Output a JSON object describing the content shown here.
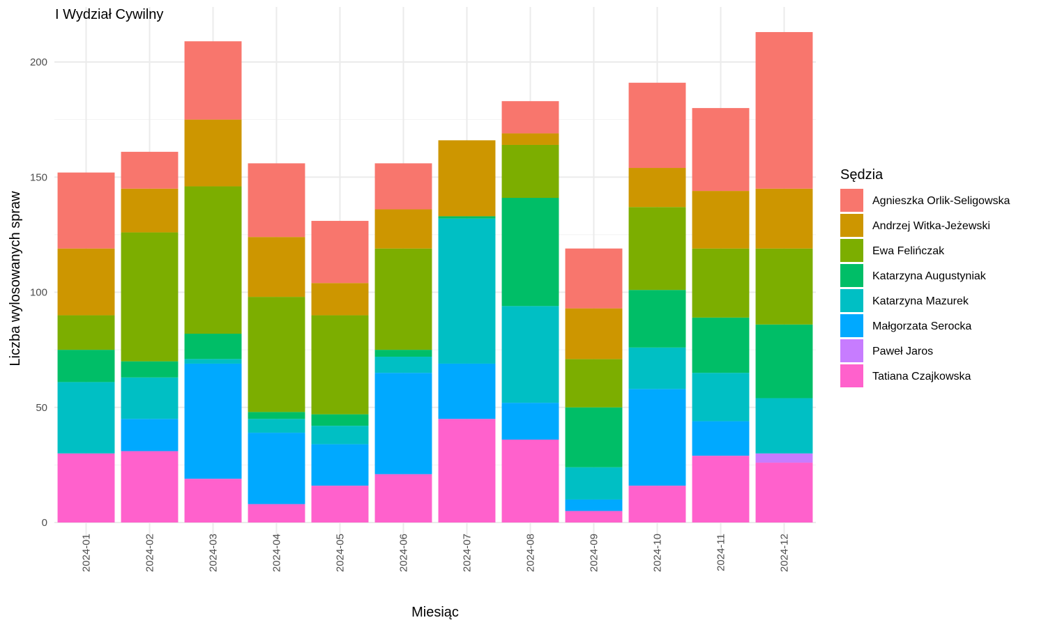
{
  "chart_data": {
    "type": "bar",
    "stacked": true,
    "title": "I Wydział Cywilny",
    "xlabel": "Miesiąc",
    "ylabel": "Liczba wylosowanych spraw",
    "ylim": [
      0,
      220
    ],
    "yticks": [
      0,
      50,
      100,
      150,
      200
    ],
    "grid": true,
    "legend_title": "Sędzia",
    "legend_position": "right",
    "categories": [
      "2024-01",
      "2024-02",
      "2024-03",
      "2024-04",
      "2024-05",
      "2024-06",
      "2024-07",
      "2024-08",
      "2024-09",
      "2024-10",
      "2024-11",
      "2024-12"
    ],
    "series": [
      {
        "name": "Agnieszka Orlik-Seligowska",
        "color": "#F8766D",
        "values": [
          33,
          16,
          34,
          32,
          27,
          20,
          0,
          14,
          26,
          37,
          36,
          68
        ]
      },
      {
        "name": "Andrzej Witka-Jeżewski",
        "color": "#CD9600",
        "values": [
          29,
          19,
          29,
          26,
          14,
          17,
          33,
          5,
          22,
          17,
          25,
          26
        ]
      },
      {
        "name": "Ewa Felińczak",
        "color": "#7CAE00",
        "values": [
          15,
          56,
          64,
          50,
          43,
          44,
          0,
          23,
          21,
          36,
          30,
          33
        ]
      },
      {
        "name": "Katarzyna Augustyniak",
        "color": "#00BE67",
        "values": [
          14,
          7,
          11,
          3,
          5,
          3,
          1,
          47,
          26,
          25,
          24,
          32
        ]
      },
      {
        "name": "Katarzyna Mazurek",
        "color": "#00BFC4",
        "values": [
          31,
          18,
          2,
          6,
          8,
          7,
          63,
          42,
          14,
          18,
          21,
          24
        ]
      },
      {
        "name": "Małgorzata Serocka",
        "color": "#00A9FF",
        "values": [
          0,
          14,
          50,
          31,
          18,
          44,
          24,
          16,
          5,
          42,
          15,
          0
        ]
      },
      {
        "name": "Paweł Jaros",
        "color": "#C77CFF",
        "values": [
          0,
          0,
          0,
          0,
          0,
          0,
          0,
          0,
          0,
          0,
          0,
          4
        ]
      },
      {
        "name": "Tatiana Czajkowska",
        "color": "#FF61CC",
        "values": [
          30,
          31,
          19,
          8,
          16,
          21,
          45,
          36,
          5,
          16,
          29,
          26
        ]
      }
    ]
  }
}
